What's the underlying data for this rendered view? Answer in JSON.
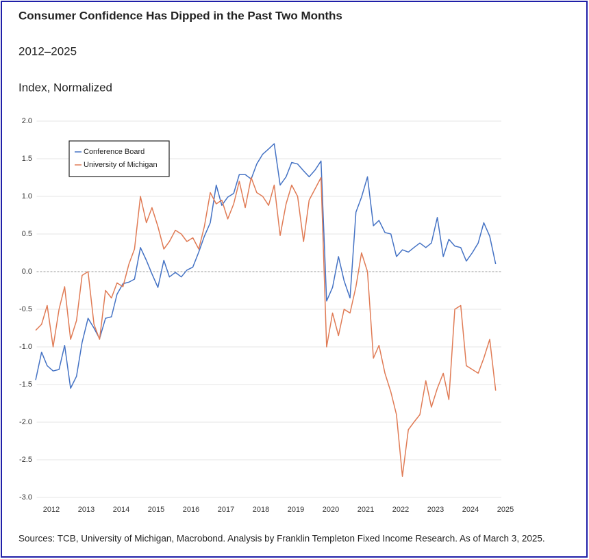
{
  "chart_data": {
    "type": "line",
    "title": "Consumer Confidence Has Dipped in the Past Two Months",
    "subtitle": "2012–2025",
    "y_label": "Index, Normalized",
    "source": "Sources: TCB, University of Michigan, Macrobond. Analysis by Franklin Templeton Fixed Income Research. As of March 3, 2025.",
    "x": [
      2011.55,
      2011.72,
      2011.88,
      2012.05,
      2012.22,
      2012.38,
      2012.55,
      2012.72,
      2012.88,
      2013.05,
      2013.22,
      2013.38,
      2013.55,
      2013.72,
      2013.88,
      2014.05,
      2014.22,
      2014.38,
      2014.55,
      2014.72,
      2014.88,
      2015.05,
      2015.22,
      2015.38,
      2015.55,
      2015.72,
      2015.88,
      2016.05,
      2016.22,
      2016.38,
      2016.55,
      2016.72,
      2016.88,
      2017.05,
      2017.22,
      2017.38,
      2017.55,
      2017.72,
      2017.88,
      2018.05,
      2018.22,
      2018.38,
      2018.55,
      2018.72,
      2018.88,
      2019.05,
      2019.22,
      2019.38,
      2019.55,
      2019.72,
      2019.88,
      2020.05,
      2020.22,
      2020.38,
      2020.55,
      2020.72,
      2020.88,
      2021.05,
      2021.22,
      2021.38,
      2021.55,
      2021.72,
      2021.88,
      2022.05,
      2022.22,
      2022.38,
      2022.55,
      2022.72,
      2022.88,
      2023.05,
      2023.22,
      2023.38,
      2023.55,
      2023.72,
      2023.88,
      2024.05,
      2024.22,
      2024.38,
      2024.55,
      2024.72
    ],
    "series": [
      {
        "name": "Conference Board",
        "color": "#4472c4",
        "values": [
          -1.44,
          -1.07,
          -1.25,
          -1.32,
          -1.3,
          -0.98,
          -1.55,
          -1.39,
          -0.94,
          -0.62,
          -0.75,
          -0.89,
          -0.62,
          -0.6,
          -0.3,
          -0.16,
          -0.14,
          -0.1,
          0.32,
          0.15,
          -0.03,
          -0.21,
          0.15,
          -0.07,
          -0.01,
          -0.07,
          0.02,
          0.06,
          0.26,
          0.47,
          0.65,
          1.15,
          0.88,
          0.99,
          1.04,
          1.29,
          1.29,
          1.23,
          1.43,
          1.56,
          1.63,
          1.7,
          1.15,
          1.26,
          1.45,
          1.43,
          1.34,
          1.26,
          1.35,
          1.47,
          -0.39,
          -0.21,
          0.2,
          -0.12,
          -0.35,
          0.79,
          0.99,
          1.26,
          0.61,
          0.68,
          0.52,
          0.5,
          0.2,
          0.29,
          0.26,
          0.32,
          0.38,
          0.32,
          0.38,
          0.72,
          0.2,
          0.43,
          0.34,
          0.32,
          0.14,
          0.25,
          0.38,
          0.65,
          0.47,
          0.1
        ]
      },
      {
        "name": "University of Michigan",
        "color": "#e07b55",
        "values": [
          -0.78,
          -0.7,
          -0.45,
          -1.0,
          -0.5,
          -0.2,
          -0.9,
          -0.65,
          -0.05,
          0.0,
          -0.7,
          -0.9,
          -0.25,
          -0.35,
          -0.15,
          -0.2,
          0.1,
          0.3,
          1.0,
          0.65,
          0.85,
          0.6,
          0.3,
          0.4,
          0.55,
          0.5,
          0.4,
          0.45,
          0.3,
          0.6,
          1.05,
          0.9,
          0.95,
          0.7,
          0.9,
          1.2,
          0.85,
          1.25,
          1.05,
          1.0,
          0.88,
          1.15,
          0.48,
          0.9,
          1.15,
          1.0,
          0.4,
          0.95,
          1.1,
          1.25,
          -1.0,
          -0.55,
          -0.85,
          -0.5,
          -0.55,
          -0.2,
          0.25,
          0.0,
          -1.15,
          -0.98,
          -1.35,
          -1.6,
          -1.9,
          -2.72,
          -2.1,
          -2.0,
          -1.9,
          -1.45,
          -1.8,
          -1.55,
          -1.35,
          -1.7,
          -0.5,
          -0.45,
          -1.25,
          -1.3,
          -1.35,
          -1.15,
          -0.9,
          -1.58
        ]
      }
    ],
    "xlim": [
      2011.5,
      2025
    ],
    "xticks": [
      2012,
      2013,
      2014,
      2015,
      2016,
      2017,
      2018,
      2019,
      2020,
      2021,
      2022,
      2023,
      2024,
      2025
    ],
    "ylim": [
      -3,
      2
    ],
    "yticks": [
      {
        "value": 2,
        "label": "2.0"
      },
      1.5,
      {
        "value": 1,
        "label": "1.0"
      },
      0.5,
      {
        "value": 0,
        "label": "0.0"
      },
      -0.5,
      {
        "value": -1,
        "label": "-1.0"
      },
      -1.5,
      {
        "value": -2,
        "label": "-2.0"
      },
      -2.5,
      {
        "value": -3,
        "label": "-3.0"
      }
    ],
    "grid": true,
    "legend": "upper left"
  }
}
